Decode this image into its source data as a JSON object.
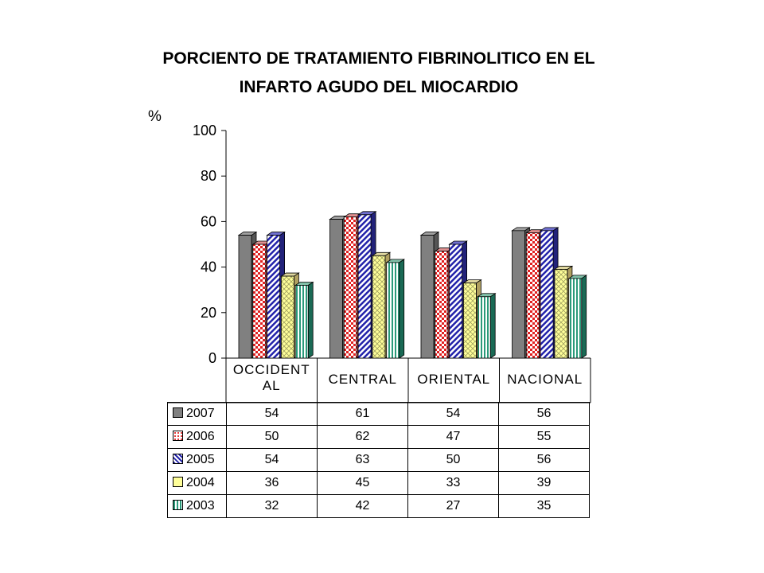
{
  "chart_data": {
    "type": "bar",
    "title_lines": [
      "PORCIENTO DE TRATAMIENTO FIBRINOLITICO EN EL",
      "INFARTO AGUDO DEL MIOCARDIO"
    ],
    "ylabel": "%",
    "ylim": [
      0,
      100
    ],
    "yticks": [
      "0",
      "20",
      "40",
      "60",
      "80",
      "100"
    ],
    "categories": [
      "OCCIDENTAL",
      "CENTRAL",
      "ORIENTAL",
      "NACIONAL"
    ],
    "category_label_lines": [
      [
        "OCCIDENT",
        "AL"
      ],
      [
        "CENTRAL"
      ],
      [
        "ORIENTAL"
      ],
      [
        "NACIONAL"
      ]
    ],
    "series": [
      {
        "name": "2007",
        "values": [
          54,
          61,
          54,
          56
        ],
        "color": "#808080",
        "pattern": "solid"
      },
      {
        "name": "2006",
        "values": [
          50,
          62,
          47,
          55
        ],
        "color": "#ff6060",
        "pattern": "dots"
      },
      {
        "name": "2005",
        "values": [
          54,
          63,
          50,
          56
        ],
        "color": "#3333cc",
        "pattern": "diagonal-stripes"
      },
      {
        "name": "2004",
        "values": [
          36,
          45,
          33,
          39
        ],
        "color": "#ffff99",
        "pattern": "crosshatch"
      },
      {
        "name": "2003",
        "values": [
          32,
          42,
          27,
          35
        ],
        "color": "#33b08a",
        "pattern": "vertical-stripes"
      }
    ],
    "legend": "data-table-below",
    "grid": false
  }
}
